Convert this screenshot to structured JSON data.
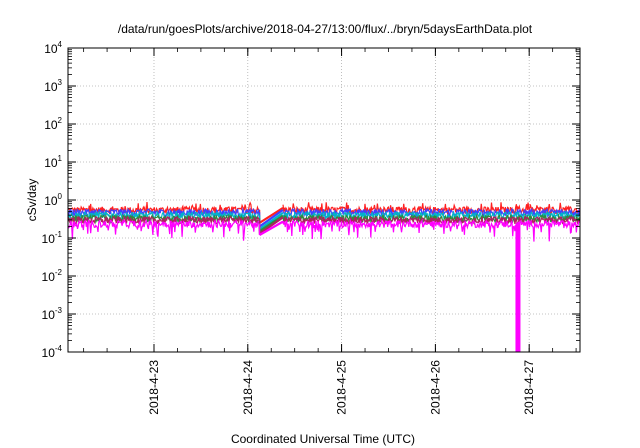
{
  "chart_data": {
    "type": "line",
    "title": "/data/run/goesPlots/archive/2018-04-27/13:00/flux/../bryn/5daysEarthData.plot",
    "xlabel": "Coordinated Universal Time (UTC)",
    "ylabel": "cSv/day",
    "yscale": "log",
    "ylim": [
      0.0001,
      10000
    ],
    "xlim": [
      "2018-04-22T02:00",
      "2018-04-27T13:00"
    ],
    "y_ticks": [
      {
        "base": "10",
        "exp": "-4",
        "value": 0.0001
      },
      {
        "base": "10",
        "exp": "-3",
        "value": 0.001
      },
      {
        "base": "10",
        "exp": "-2",
        "value": 0.01
      },
      {
        "base": "10",
        "exp": "-1",
        "value": 0.1
      },
      {
        "base": "10",
        "exp": "0",
        "value": 1
      },
      {
        "base": "10",
        "exp": "1",
        "value": 10
      },
      {
        "base": "10",
        "exp": "2",
        "value": 100
      },
      {
        "base": "10",
        "exp": "3",
        "value": 1000
      },
      {
        "base": "10",
        "exp": "4",
        "value": 10000
      }
    ],
    "x_ticks": [
      {
        "label": "2018-4-23",
        "value": "2018-04-23T00:00"
      },
      {
        "label": "2018-4-24",
        "value": "2018-04-24T00:00"
      },
      {
        "label": "2018-4-25",
        "value": "2018-04-25T00:00"
      },
      {
        "label": "2018-4-26",
        "value": "2018-04-26T00:00"
      },
      {
        "label": "2018-4-27",
        "value": "2018-04-27T00:00"
      }
    ],
    "grid": true,
    "data_gap": {
      "start": "2018-04-24T03:00",
      "end": "2018-04-24T09:00"
    },
    "dropout": {
      "time": "2018-04-26T21:00",
      "to_value": 0.0001
    },
    "series": [
      {
        "color": "#ff2020",
        "base_value": 0.55,
        "gap_start_value": 0.25,
        "gap_end_value": 0.62
      },
      {
        "color": "#4040ff",
        "base_value": 0.48,
        "gap_start_value": 0.2,
        "gap_end_value": 0.55
      },
      {
        "color": "#00b4c8",
        "base_value": 0.4,
        "gap_start_value": 0.17,
        "gap_end_value": 0.46
      },
      {
        "color": "#2e8b3c",
        "base_value": 0.33,
        "gap_start_value": 0.15,
        "gap_end_value": 0.39
      },
      {
        "color": "#b02060",
        "base_value": 0.3,
        "gap_start_value": 0.13,
        "gap_end_value": 0.35
      },
      {
        "color": "#ff00ff",
        "base_value": 0.24,
        "gap_start_value": 0.12,
        "gap_end_value": 0.27
      }
    ]
  }
}
